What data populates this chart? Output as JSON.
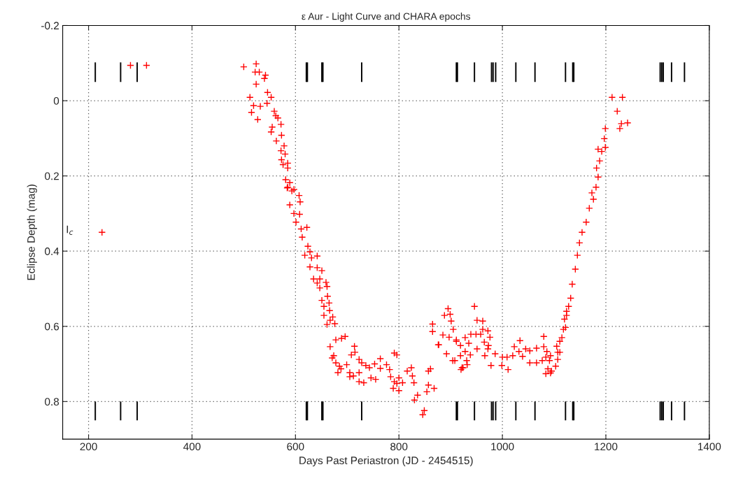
{
  "chart_data": {
    "type": "scatter",
    "title": "ε Aur - Light Curve and CHARA epochs",
    "xlabel": "Days Past Periastron (JD - 2454515)",
    "ylabel": "Eclipse Depth (mag)",
    "xlim": [
      150,
      1400
    ],
    "xticks": [
      200,
      400,
      600,
      800,
      1000,
      1200,
      1400
    ],
    "ylim": [
      0.9,
      -0.2
    ],
    "yticks": [
      -0.2,
      0,
      0.2,
      0.4,
      0.6,
      0.8
    ],
    "grid": true,
    "legend": false,
    "annotations": [
      "I$_{c}$"
    ],
    "series": [
      {
        "marker": "cross",
        "color": "#ff0000",
        "x": [
          226,
          281,
          312,
          500,
          524,
          522,
          530,
          542,
          540,
          524,
          546,
          512,
          553,
          519,
          532,
          545,
          515,
          527,
          559,
          562,
          566,
          572,
          555,
          553,
          573,
          563,
          578,
          572,
          580,
          573,
          585,
          576,
          585,
          581,
          589,
          585,
          593,
          589,
          584,
          597,
          607,
          609,
          597,
          608,
          601,
          611,
          622,
          613,
          624,
          628,
          618,
          642,
          631,
          628,
          642,
          651,
          635,
          647,
          642,
          659,
          647,
          661,
          662,
          651,
          655,
          665,
          666,
          655,
          672,
          667,
          676,
          661,
          678,
          689,
          696,
          667,
          674,
          671,
          678,
          685,
          688,
          682,
          699,
          714,
          715,
          708,
          705,
          712,
          705,
          723,
          728,
          723,
          723,
          732,
          736,
          743,
          746,
          755,
          753,
          764,
          764,
          776,
          782,
          784,
          791,
          796,
          791,
          796,
          789,
          800,
          807,
          800,
          816,
          824,
          826,
          829,
          830,
          836,
          846,
          849,
          865,
          865,
          876,
          885,
          895,
          888,
          899,
          901,
          905,
          911,
          861,
          857,
          857,
          868,
          854,
          892,
          908,
          922,
          946,
          951,
          962,
          962,
          972,
          897,
          911,
          928,
          939,
          949,
          958,
          976,
          919,
          935,
          965,
          973,
          877,
          951,
          972,
          928,
          938,
          986,
          966,
          904,
          931,
          919,
          932,
          924,
          920,
          978,
          999,
          1000,
          1011,
          1009,
          1020,
          1023,
          1034,
          1032,
          1039,
          1045,
          1053,
          1066,
          1080,
          1080,
          1053,
          1066,
          1077,
          1086,
          1084,
          1093,
          1091,
          1084,
          1088,
          1095,
          1093,
          1103,
          1107,
          1107,
          1111,
          1105,
          1111,
          1115,
          1118,
          1122,
          1120,
          1124,
          1124,
          1128,
          1132,
          1135,
          1141,
          1145,
          1149,
          1154,
          1162,
          1168,
          1176,
          1181,
          1173,
          1185,
          1182,
          1185,
          1188,
          1192,
          1197,
          1199,
          1199,
          1212,
          1232,
          1222,
          1227,
          1230,
          1242
        ],
        "values": [
          0.35,
          -0.094,
          -0.094,
          -0.09,
          -0.098,
          -0.076,
          -0.076,
          -0.068,
          -0.059,
          -0.044,
          -0.022,
          -0.009,
          -0.009,
          0.013,
          0.015,
          0.007,
          0.031,
          0.05,
          0.028,
          0.04,
          0.046,
          0.063,
          0.07,
          0.083,
          0.092,
          0.107,
          0.12,
          0.133,
          0.142,
          0.157,
          0.166,
          0.17,
          0.179,
          0.21,
          0.218,
          0.23,
          0.24,
          0.277,
          0.232,
          0.236,
          0.252,
          0.269,
          0.3,
          0.302,
          0.323,
          0.341,
          0.337,
          0.363,
          0.387,
          0.402,
          0.411,
          0.413,
          0.418,
          0.442,
          0.444,
          0.452,
          0.474,
          0.474,
          0.485,
          0.483,
          0.498,
          0.494,
          0.52,
          0.531,
          0.547,
          0.538,
          0.558,
          0.571,
          0.575,
          0.584,
          0.593,
          0.595,
          0.636,
          0.632,
          0.627,
          0.654,
          0.678,
          0.684,
          0.697,
          0.706,
          0.713,
          0.723,
          0.702,
          0.653,
          0.669,
          0.676,
          0.723,
          0.732,
          0.734,
          0.688,
          0.697,
          0.723,
          0.747,
          0.75,
          0.704,
          0.71,
          0.737,
          0.741,
          0.7,
          0.686,
          0.712,
          0.702,
          0.715,
          0.734,
          0.671,
          0.676,
          0.747,
          0.752,
          0.765,
          0.737,
          0.75,
          0.771,
          0.719,
          0.71,
          0.732,
          0.75,
          0.796,
          0.783,
          0.835,
          0.824,
          0.594,
          0.614,
          0.649,
          0.623,
          0.553,
          0.571,
          0.568,
          0.586,
          0.608,
          0.636,
          0.713,
          0.719,
          0.756,
          0.765,
          0.774,
          0.673,
          0.691,
          0.71,
          0.547,
          0.584,
          0.586,
          0.608,
          0.612,
          0.629,
          0.64,
          0.63,
          0.621,
          0.621,
          0.621,
          0.629,
          0.651,
          0.645,
          0.642,
          0.651,
          0.649,
          0.66,
          0.66,
          0.667,
          0.676,
          0.673,
          0.678,
          0.691,
          0.691,
          0.678,
          0.702,
          0.71,
          0.715,
          0.704,
          0.704,
          0.682,
          0.715,
          0.682,
          0.678,
          0.654,
          0.638,
          0.667,
          0.68,
          0.66,
          0.665,
          0.658,
          0.627,
          0.654,
          0.697,
          0.697,
          0.691,
          0.667,
          0.682,
          0.678,
          0.691,
          0.726,
          0.713,
          0.719,
          0.724,
          0.706,
          0.688,
          0.669,
          0.669,
          0.653,
          0.64,
          0.63,
          0.608,
          0.603,
          0.581,
          0.571,
          0.56,
          0.547,
          0.525,
          0.488,
          0.448,
          0.411,
          0.378,
          0.35,
          0.323,
          0.286,
          0.262,
          0.23,
          0.245,
          0.203,
          0.179,
          0.129,
          0.16,
          0.135,
          0.101,
          0.074,
          0.124,
          -0.009,
          -0.009,
          0.028,
          0.074,
          0.061,
          0.059
        ]
      },
      {
        "type": "bar",
        "color": "#000000",
        "x": [
          213,
          262,
          294,
          621,
          623,
          651,
          653,
          728,
          911,
          913,
          946,
          979,
          982,
          987,
          1026,
          1063,
          1122,
          1136,
          1138,
          1305,
          1308,
          1311,
          1327,
          1352
        ],
        "base": [
          -0.102,
          -0.102,
          -0.102,
          -0.102,
          -0.102,
          -0.102,
          -0.102,
          -0.102,
          -0.102,
          -0.102,
          -0.102,
          -0.102,
          -0.102,
          -0.102,
          -0.102,
          -0.102,
          -0.102,
          -0.102,
          -0.102,
          -0.102,
          -0.102,
          -0.102,
          -0.102,
          -0.102
        ],
        "values": [
          0.052,
          0.052,
          0.052,
          0.052,
          0.052,
          0.052,
          0.052,
          0.052,
          0.052,
          0.052,
          0.052,
          0.052,
          0.052,
          0.052,
          0.052,
          0.052,
          0.052,
          0.052,
          0.052,
          0.052,
          0.052,
          0.052,
          0.052,
          0.052
        ]
      },
      {
        "type": "bar",
        "color": "#000000",
        "x": [
          213,
          262,
          294,
          621,
          623,
          651,
          653,
          728,
          911,
          913,
          946,
          979,
          982,
          987,
          1026,
          1063,
          1122,
          1136,
          1138,
          1305,
          1308,
          1311,
          1327,
          1352
        ],
        "base": [
          0.8,
          0.8,
          0.8,
          0.8,
          0.8,
          0.8,
          0.8,
          0.8,
          0.8,
          0.8,
          0.8,
          0.8,
          0.8,
          0.8,
          0.8,
          0.8,
          0.8,
          0.8,
          0.8,
          0.8,
          0.8,
          0.8,
          0.8,
          0.8
        ],
        "values": [
          0.05,
          0.05,
          0.05,
          0.05,
          0.05,
          0.05,
          0.05,
          0.05,
          0.05,
          0.05,
          0.05,
          0.05,
          0.05,
          0.05,
          0.05,
          0.05,
          0.05,
          0.05,
          0.05,
          0.05,
          0.05,
          0.05,
          0.05,
          0.05
        ]
      }
    ]
  }
}
